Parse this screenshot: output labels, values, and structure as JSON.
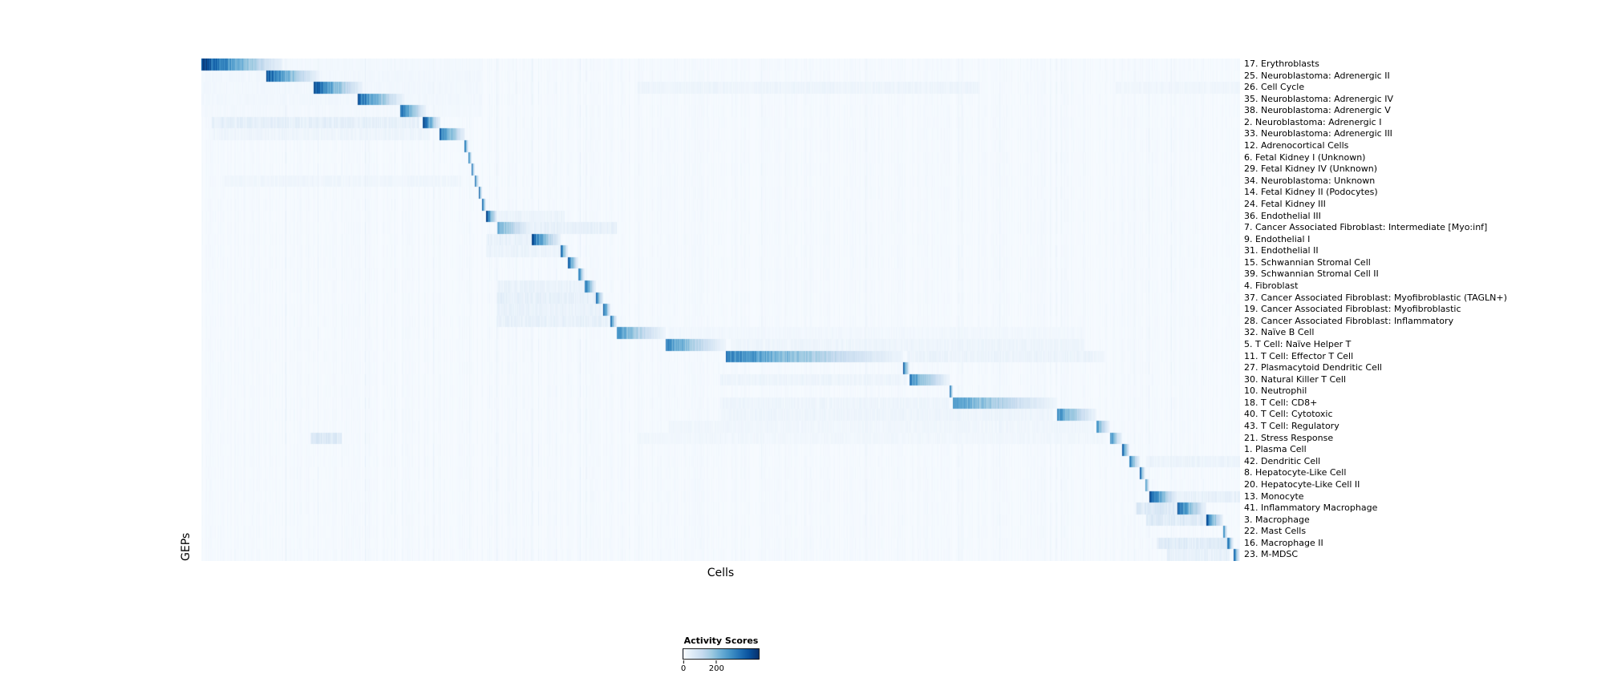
{
  "chart_data": {
    "type": "heatmap",
    "title": "",
    "xlabel": "Cells",
    "ylabel": "GEPs",
    "colormap": "Blues",
    "grid": false,
    "x_tick_labels": [],
    "colorbar": {
      "label": "Activity Scores",
      "tick_labels": [
        "0",
        "200"
      ],
      "tick_positions": [
        0,
        0.43
      ],
      "scale_max": 460,
      "orientation": "horizontal",
      "position": "bottom-center"
    },
    "n_rows": 43,
    "rows": [
      {
        "label": "17. Erythroblasts",
        "block": [
          0.0,
          0.078
        ],
        "peak": 440,
        "ambient": [
          [
            0.0,
            0.27,
            12
          ]
        ]
      },
      {
        "label": "25. Neuroblastoma: Adrenergic II",
        "block": [
          0.062,
          0.113
        ],
        "peak": 400,
        "ambient": [
          [
            0.0,
            0.27,
            15
          ]
        ]
      },
      {
        "label": "26. Cell Cycle",
        "block": [
          0.108,
          0.155
        ],
        "peak": 410,
        "ambient": [
          [
            0.0,
            0.27,
            15
          ],
          [
            0.42,
            0.75,
            25
          ],
          [
            0.88,
            1.0,
            20
          ]
        ]
      },
      {
        "label": "35. Neuroblastoma: Adrenergic IV",
        "block": [
          0.15,
          0.195
        ],
        "peak": 390,
        "ambient": [
          [
            0.0,
            0.27,
            15
          ]
        ]
      },
      {
        "label": "38. Neuroblastoma: Adrenergic V",
        "block": [
          0.191,
          0.216
        ],
        "peak": 400,
        "ambient": [
          [
            0.0,
            0.27,
            12
          ]
        ]
      },
      {
        "label": "2. Neuroblastoma: Adrenergic I",
        "block": [
          0.213,
          0.23
        ],
        "peak": 430,
        "ambient": [
          [
            0.01,
            0.21,
            45
          ]
        ]
      },
      {
        "label": "33. Neuroblastoma: Adrenergic III",
        "block": [
          0.229,
          0.254
        ],
        "peak": 390,
        "ambient": [
          [
            0.01,
            0.22,
            25
          ]
        ]
      },
      {
        "label": "12. Adrenocortical Cells",
        "block": [
          0.253,
          0.257
        ],
        "peak": 430,
        "ambient": []
      },
      {
        "label": "6. Fetal Kidney I (Unknown)",
        "block": [
          0.257,
          0.26
        ],
        "peak": 400,
        "ambient": []
      },
      {
        "label": "29. Fetal Kidney IV (Unknown)",
        "block": [
          0.26,
          0.263
        ],
        "peak": 380,
        "ambient": []
      },
      {
        "label": "34. Neuroblastoma: Unknown",
        "block": [
          0.263,
          0.267
        ],
        "peak": 370,
        "ambient": [
          [
            0.02,
            0.25,
            20
          ]
        ]
      },
      {
        "label": "14. Fetal Kidney II (Podocytes)",
        "block": [
          0.267,
          0.27
        ],
        "peak": 400,
        "ambient": []
      },
      {
        "label": "24. Fetal Kidney III",
        "block": [
          0.27,
          0.274
        ],
        "peak": 380,
        "ambient": []
      },
      {
        "label": "36. Endothelial III",
        "block": [
          0.274,
          0.285
        ],
        "peak": 420,
        "ambient": [
          [
            0.285,
            0.35,
            30
          ]
        ]
      },
      {
        "label": "7. Cancer Associated Fibroblast: Intermediate [Myo:inf]",
        "block": [
          0.285,
          0.32
        ],
        "peak": 240,
        "ambient": [
          [
            0.32,
            0.4,
            40
          ]
        ]
      },
      {
        "label": "9. Endothelial I",
        "block": [
          0.318,
          0.346
        ],
        "peak": 390,
        "ambient": [
          [
            0.274,
            0.318,
            40
          ]
        ]
      },
      {
        "label": "31. Endothelial II",
        "block": [
          0.346,
          0.353
        ],
        "peak": 360,
        "ambient": [
          [
            0.274,
            0.346,
            30
          ]
        ]
      },
      {
        "label": "15. Schwannian Stromal Cell",
        "block": [
          0.353,
          0.363
        ],
        "peak": 390,
        "ambient": []
      },
      {
        "label": "39. Schwannian Stromal Cell II",
        "block": [
          0.363,
          0.369
        ],
        "peak": 340,
        "ambient": []
      },
      {
        "label": "4. Fibroblast",
        "block": [
          0.369,
          0.38
        ],
        "peak": 390,
        "ambient": [
          [
            0.285,
            0.369,
            35
          ]
        ]
      },
      {
        "label": "37. Cancer Associated Fibroblast: Myofibroblastic (TAGLN+)",
        "block": [
          0.38,
          0.387
        ],
        "peak": 370,
        "ambient": [
          [
            0.285,
            0.38,
            45
          ]
        ]
      },
      {
        "label": "19. Cancer Associated Fibroblast: Myofibroblastic",
        "block": [
          0.387,
          0.394
        ],
        "peak": 390,
        "ambient": [
          [
            0.285,
            0.387,
            35
          ]
        ]
      },
      {
        "label": "28. Cancer Associated Fibroblast: Inflammatory",
        "block": [
          0.394,
          0.4
        ],
        "peak": 360,
        "ambient": [
          [
            0.285,
            0.394,
            40
          ]
        ]
      },
      {
        "label": "32. Naïve B Cell",
        "block": [
          0.4,
          0.447
        ],
        "peak": 290,
        "ambient": [
          [
            0.45,
            0.85,
            15
          ]
        ]
      },
      {
        "label": "5. T Cell: Naïve Helper T",
        "block": [
          0.447,
          0.505
        ],
        "peak": 310,
        "ambient": [
          [
            0.51,
            0.85,
            25
          ]
        ]
      },
      {
        "label": "11. T Cell: Effector T Cell",
        "block": [
          0.505,
          0.676
        ],
        "peak": 330,
        "ambient": [
          [
            0.68,
            0.87,
            30
          ]
        ]
      },
      {
        "label": "27. Plasmacytoid Dendritic Cell",
        "block": [
          0.676,
          0.682
        ],
        "peak": 390,
        "ambient": []
      },
      {
        "label": "30. Natural Killer T Cell",
        "block": [
          0.682,
          0.721
        ],
        "peak": 310,
        "ambient": [
          [
            0.5,
            0.68,
            25
          ]
        ]
      },
      {
        "label": "10. Neutrophil",
        "block": [
          0.721,
          0.724
        ],
        "peak": 320,
        "ambient": []
      },
      {
        "label": "18. T Cell: CD8+",
        "block": [
          0.724,
          0.824
        ],
        "peak": 280,
        "ambient": [
          [
            0.5,
            0.72,
            25
          ]
        ]
      },
      {
        "label": "40. T Cell: Cytotoxic",
        "block": [
          0.824,
          0.862
        ],
        "peak": 310,
        "ambient": [
          [
            0.5,
            0.82,
            25
          ]
        ]
      },
      {
        "label": "43. T Cell: Regulatory",
        "block": [
          0.862,
          0.875
        ],
        "peak": 290,
        "ambient": [
          [
            0.45,
            0.86,
            20
          ]
        ]
      },
      {
        "label": "21. Stress Response",
        "block": [
          0.875,
          0.887
        ],
        "peak": 310,
        "ambient": [
          [
            0.105,
            0.135,
            70
          ],
          [
            0.42,
            0.87,
            18
          ]
        ]
      },
      {
        "label": "1. Plasma Cell",
        "block": [
          0.887,
          0.894
        ],
        "peak": 390,
        "ambient": []
      },
      {
        "label": "42. Dendritic Cell",
        "block": [
          0.894,
          0.904
        ],
        "peak": 330,
        "ambient": [
          [
            0.91,
            1.0,
            30
          ]
        ]
      },
      {
        "label": "8. Hepatocyte-Like Cell",
        "block": [
          0.904,
          0.909
        ],
        "peak": 360,
        "ambient": []
      },
      {
        "label": "20. Hepatocyte-Like Cell II",
        "block": [
          0.909,
          0.913
        ],
        "peak": 340,
        "ambient": []
      },
      {
        "label": "13. Monocyte",
        "block": [
          0.913,
          0.94
        ],
        "peak": 410,
        "ambient": [
          [
            0.94,
            1.0,
            40
          ]
        ]
      },
      {
        "label": "41. Inflammatory Macrophage",
        "block": [
          0.94,
          0.968
        ],
        "peak": 390,
        "ambient": [
          [
            0.9,
            0.94,
            70
          ]
        ]
      },
      {
        "label": "3. Macrophage",
        "block": [
          0.968,
          0.984
        ],
        "peak": 400,
        "ambient": [
          [
            0.91,
            0.968,
            60
          ]
        ]
      },
      {
        "label": "22. Mast Cells",
        "block": [
          0.984,
          0.988
        ],
        "peak": 380,
        "ambient": []
      },
      {
        "label": "16. Macrophage II",
        "block": [
          0.988,
          0.994
        ],
        "peak": 400,
        "ambient": [
          [
            0.92,
            0.988,
            60
          ]
        ]
      },
      {
        "label": "23. M-MDSC",
        "block": [
          0.994,
          1.0
        ],
        "peak": 430,
        "ambient": [
          [
            0.93,
            0.99,
            40
          ]
        ]
      }
    ]
  }
}
